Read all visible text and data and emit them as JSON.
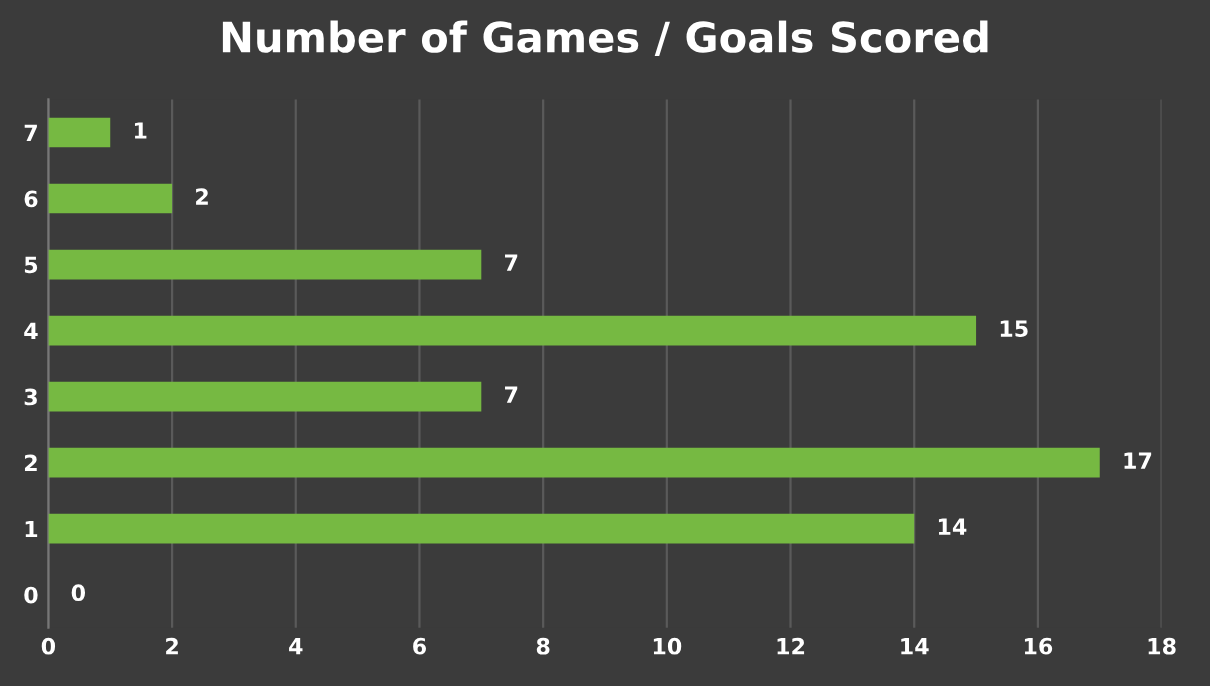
{
  "chart_data": {
    "type": "bar",
    "orientation": "horizontal",
    "title": "Number of Games / Goals Scored",
    "categories": [
      "7",
      "6",
      "5",
      "4",
      "3",
      "2",
      "1",
      "0"
    ],
    "values": [
      1,
      2,
      7,
      15,
      7,
      17,
      14,
      0
    ],
    "color": "#76b942",
    "xlim": [
      0,
      18
    ],
    "xticks": [
      0,
      2,
      4,
      6,
      8,
      10,
      12,
      14,
      16,
      18
    ],
    "grid": "x",
    "data_labels": true
  }
}
